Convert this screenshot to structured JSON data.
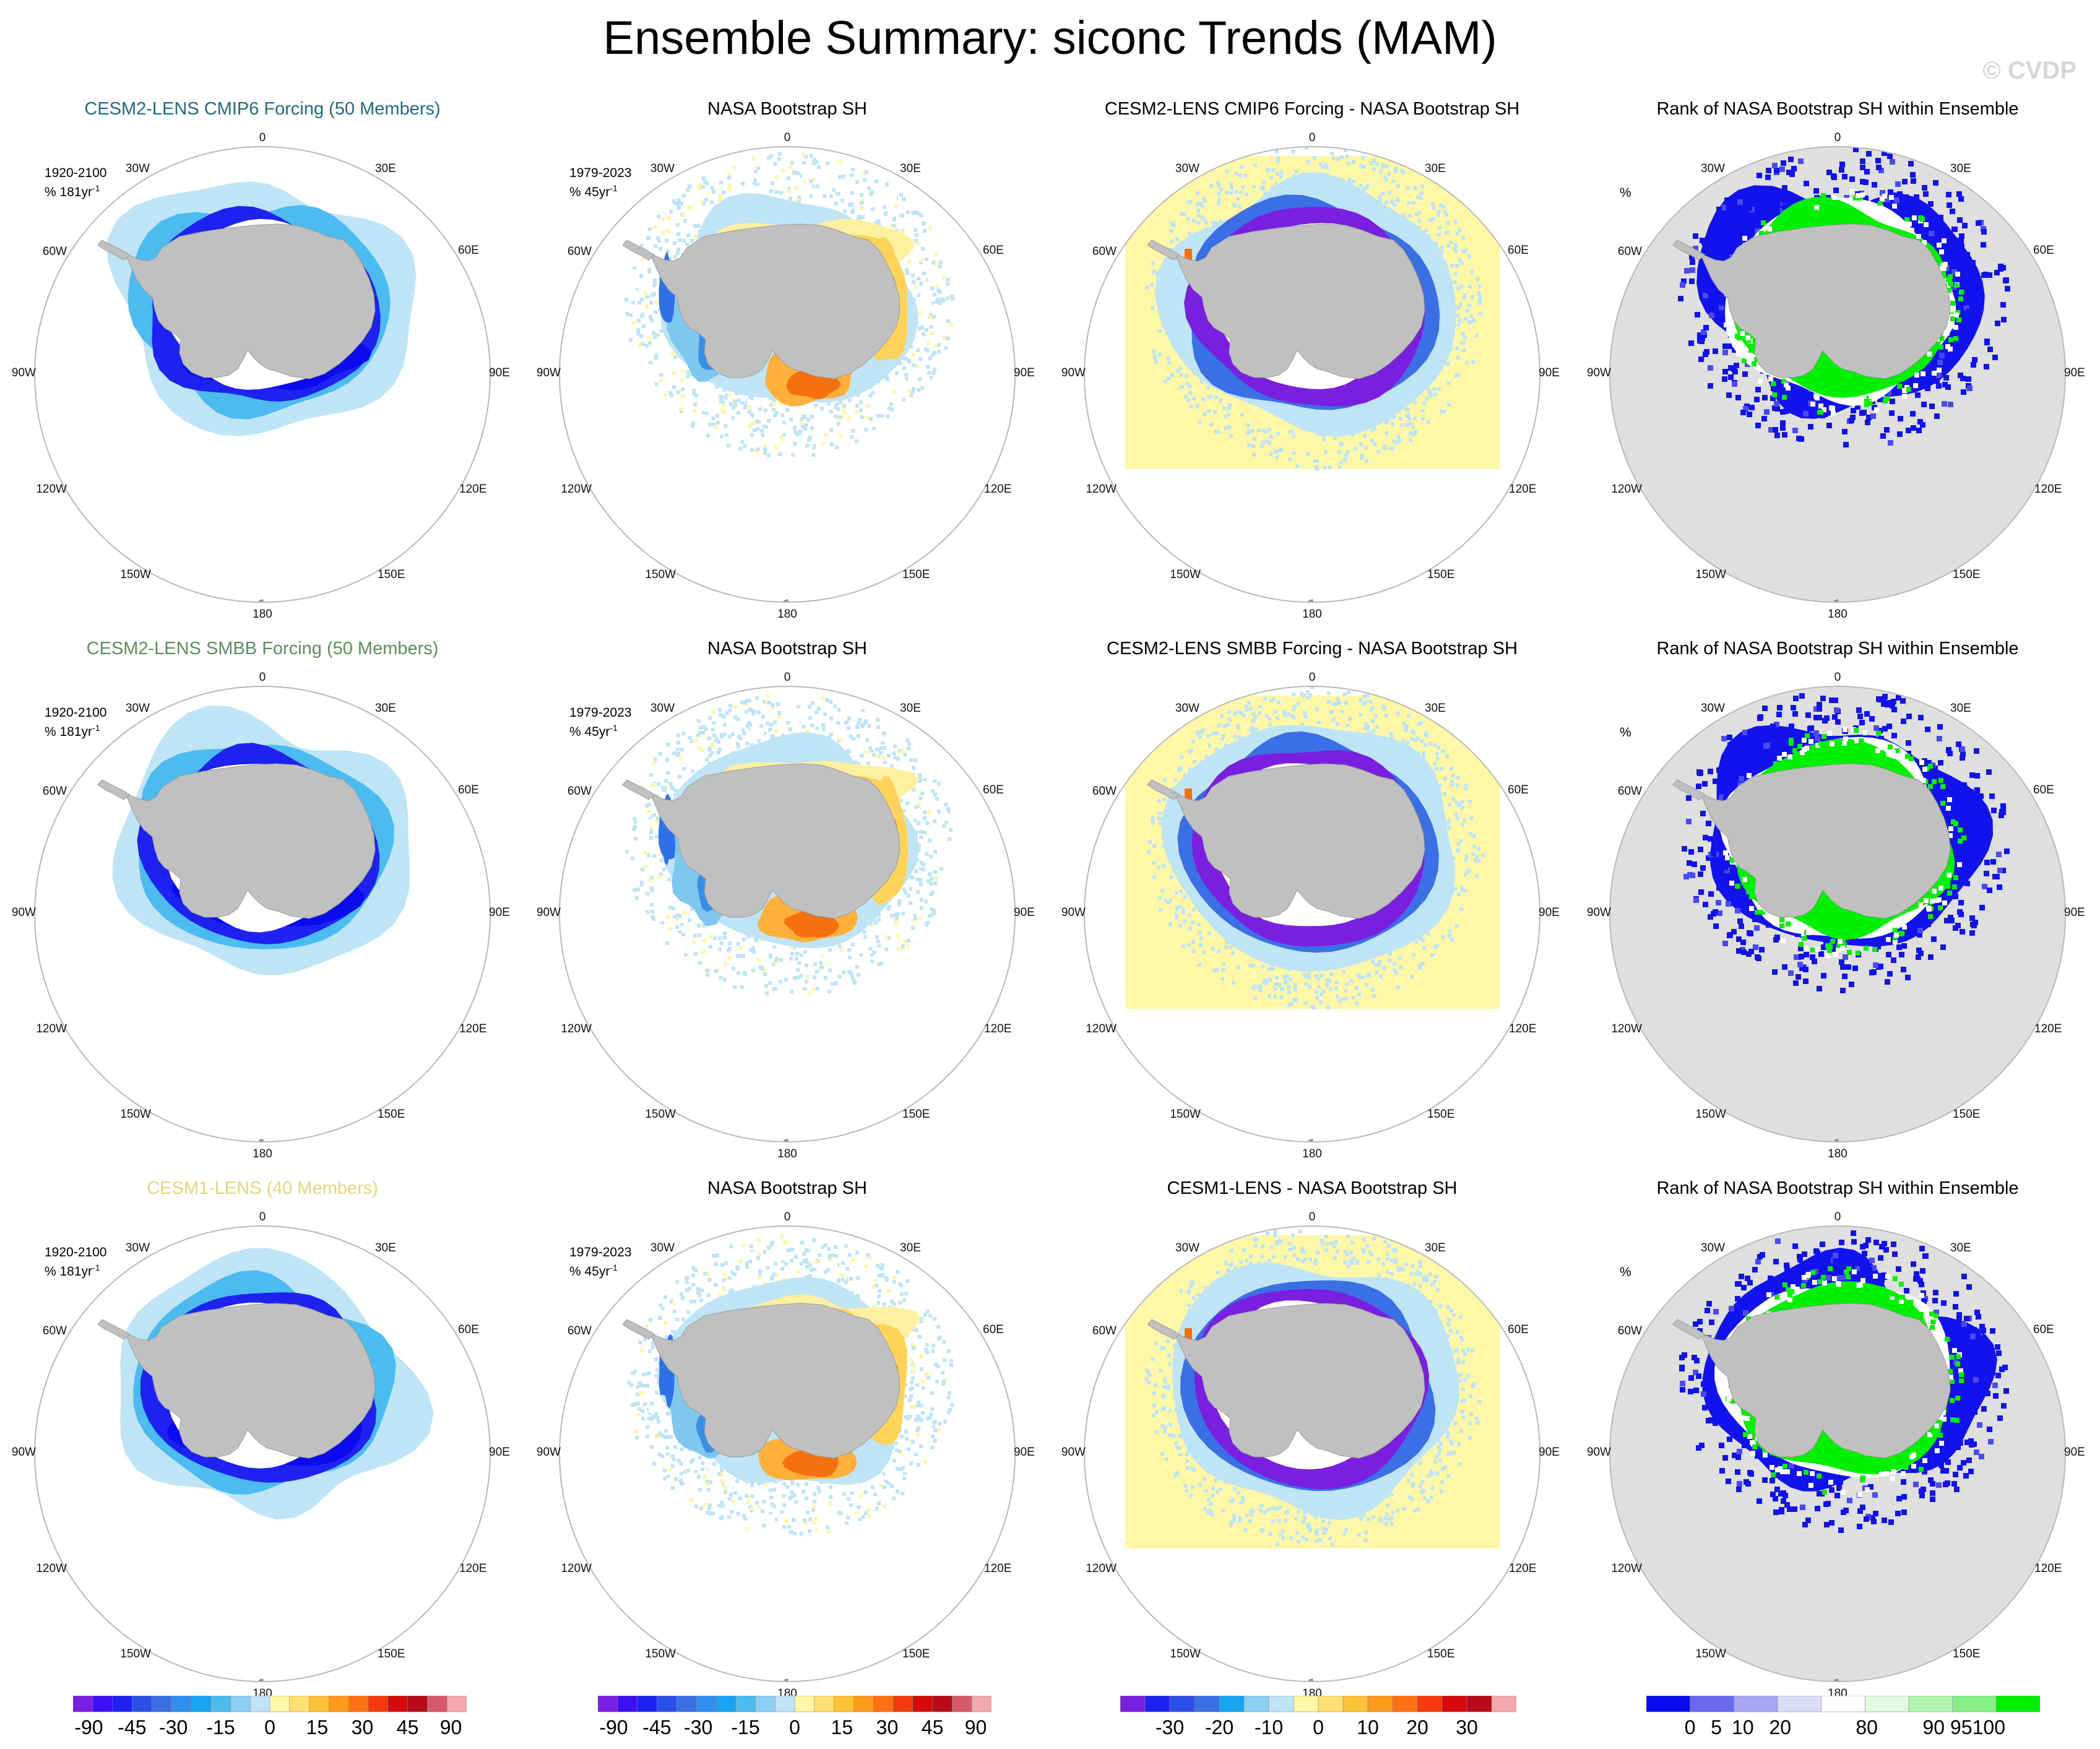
{
  "page": {
    "title": "Ensemble Summary: siconc Trends (MAM)",
    "watermark": "© CVDP"
  },
  "lon_labels": [
    "0",
    "30E",
    "60E",
    "90E",
    "120E",
    "150E",
    "180",
    "150W",
    "120W",
    "90W",
    "60W",
    "30W"
  ],
  "rows": [
    {
      "model_title": "CESM2-LENS CMIP6 Forcing (50 Members)",
      "model_title_color": "#1f6b84",
      "obs_title": "NASA Bootstrap SH",
      "diff_title": "CESM2-LENS CMIP6 Forcing - NASA Bootstrap SH",
      "rank_title": "Rank of NASA Bootstrap SH within Ensemble",
      "model_period": "1920-2100",
      "model_units": "% 181yr",
      "model_exp": "-1",
      "obs_period": "1979-2023",
      "obs_units": "% 45yr",
      "obs_exp": "-1",
      "rank_units": "%"
    },
    {
      "model_title": "CESM2-LENS SMBB Forcing (50 Members)",
      "model_title_color": "#5b8f5b",
      "obs_title": "NASA Bootstrap SH",
      "diff_title": "CESM2-LENS SMBB Forcing - NASA Bootstrap SH",
      "rank_title": "Rank of NASA Bootstrap SH within Ensemble",
      "model_period": "1920-2100",
      "model_units": "% 181yr",
      "model_exp": "-1",
      "obs_period": "1979-2023",
      "obs_units": "% 45yr",
      "obs_exp": "-1",
      "rank_units": "%"
    },
    {
      "model_title": "CESM1-LENS (40 Members)",
      "model_title_color": "#e6d67a",
      "obs_title": "NASA Bootstrap SH",
      "diff_title": "CESM1-LENS - NASA Bootstrap SH",
      "rank_title": "Rank of NASA Bootstrap SH within Ensemble",
      "model_period": "1920-2100",
      "model_units": "% 181yr",
      "model_exp": "-1",
      "obs_period": "1979-2023",
      "obs_units": "% 45yr",
      "obs_exp": "-1",
      "rank_units": "%"
    }
  ],
  "colorbars": {
    "trend": {
      "labels": [
        "-90",
        "-45",
        "-30",
        "-15",
        "0",
        "15",
        "30",
        "45",
        "90"
      ],
      "colors": [
        "#7a1fe0",
        "#3b10f2",
        "#1e22f0",
        "#2b50e8",
        "#3a6fe6",
        "#2f8ff0",
        "#17a4f2",
        "#4cbcf0",
        "#8ad0f2",
        "#bfe4f5",
        "#fff7a8",
        "#ffe070",
        "#ffc03a",
        "#ff9a1c",
        "#ff7010",
        "#f53a0e",
        "#d60a0a",
        "#b70a1a",
        "#d85a6a",
        "#f4a8aa"
      ]
    },
    "diff": {
      "labels": [
        "-30",
        "-20",
        "-10",
        "0",
        "10",
        "20",
        "30"
      ],
      "colors": [
        "#7a1fe0",
        "#1e22f0",
        "#2b50e8",
        "#3a6fe6",
        "#17a4f2",
        "#8ad0f2",
        "#bfe4f5",
        "#fff7a8",
        "#ffe070",
        "#ffc03a",
        "#ff9a1c",
        "#ff7010",
        "#f53a0e",
        "#d60a0a",
        "#b70a1a",
        "#f4a8aa"
      ]
    },
    "rank": {
      "labels": [
        "0",
        "5",
        "10",
        "20",
        "80",
        "90",
        "95",
        "100"
      ],
      "colors": [
        "#0b0bf0",
        "#6a6af0",
        "#a7a7f2",
        "#dcdcf6",
        "#ffffff",
        "#e2fae2",
        "#b0f5b0",
        "#86f086",
        "#00f000"
      ]
    }
  },
  "chart_data": [
    {
      "type": "heatmap",
      "title": "CESM2-LENS CMIP6 Forcing (50 Members)",
      "projection": "south-polar-stereographic",
      "variable": "siconc trend",
      "units": "% 181yr-1",
      "period": "1920-2100",
      "contour_levels": [
        -90,
        -45,
        -30,
        -15,
        0,
        15,
        30,
        45,
        90
      ]
    },
    {
      "type": "heatmap",
      "title": "NASA Bootstrap SH",
      "variable": "siconc trend",
      "units": "% 45yr-1",
      "period": "1979-2023",
      "contour_levels": [
        -90,
        -45,
        -30,
        -15,
        0,
        15,
        30,
        45,
        90
      ]
    },
    {
      "type": "heatmap",
      "title": "CESM2-LENS CMIP6 Forcing - NASA Bootstrap SH",
      "variable": "siconc trend difference",
      "contour_levels": [
        -30,
        -20,
        -10,
        0,
        10,
        20,
        30
      ]
    },
    {
      "type": "heatmap",
      "title": "Rank of NASA Bootstrap SH within Ensemble",
      "units": "%",
      "contour_levels": [
        0,
        5,
        10,
        20,
        80,
        90,
        95,
        100
      ]
    },
    {
      "type": "heatmap",
      "title": "CESM2-LENS SMBB Forcing (50 Members)",
      "period": "1920-2100",
      "units": "% 181yr-1"
    },
    {
      "type": "heatmap",
      "title": "CESM2-LENS SMBB Forcing - NASA Bootstrap SH"
    },
    {
      "type": "heatmap",
      "title": "CESM1-LENS (40 Members)",
      "period": "1920-2100",
      "units": "% 181yr-1"
    },
    {
      "type": "heatmap",
      "title": "CESM1-LENS - NASA Bootstrap SH"
    }
  ]
}
